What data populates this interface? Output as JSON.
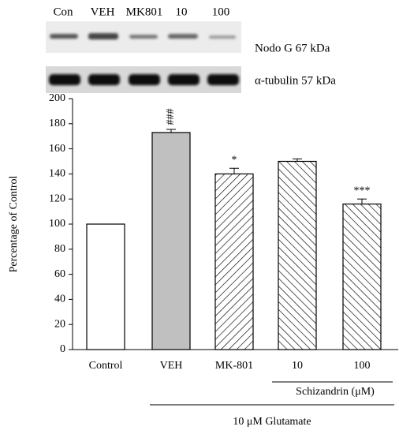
{
  "blot": {
    "lanes": [
      "Con",
      "VEH",
      "MK801",
      "10",
      "100"
    ],
    "bands": [
      "Nodo G 67 kDa",
      "α-tubulin 57 kDa"
    ]
  },
  "chart_data": {
    "type": "bar",
    "y_label": "Percentage of Control",
    "categories": [
      "Control",
      "VEH",
      "MK-801",
      "10",
      "100"
    ],
    "values": [
      100,
      173,
      140,
      150,
      116
    ],
    "errors": [
      0,
      2.5,
      4.5,
      2,
      4
    ],
    "significance": [
      null,
      "###",
      "*",
      null,
      "***"
    ],
    "colors": [
      "#ffffff",
      "#c0c0c0",
      "#ffffff",
      "#ffffff",
      "#ffffff"
    ],
    "hatch": [
      "none",
      "none",
      "forward",
      "backward",
      "backward"
    ],
    "group_labels": [
      "Schizandrin (μM)",
      "10 μM Glutamate"
    ],
    "ylim": [
      0,
      200
    ],
    "yticks": [
      0,
      20,
      40,
      60,
      80,
      100,
      120,
      140,
      160,
      180,
      200
    ]
  }
}
